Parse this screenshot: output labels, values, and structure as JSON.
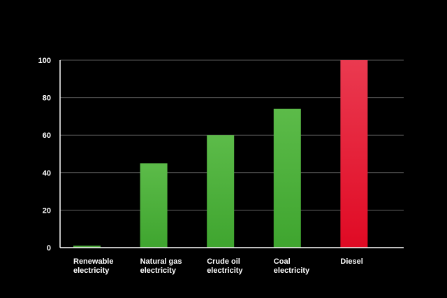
{
  "chart_data": {
    "type": "bar",
    "categories": [
      [
        "Renewable",
        "electricity"
      ],
      [
        "Natural gas",
        "electricity"
      ],
      [
        "Crude oil",
        "electricity"
      ],
      [
        "Coal",
        "electricity"
      ],
      [
        "Diesel"
      ]
    ],
    "values": [
      1,
      45,
      60,
      74,
      100
    ],
    "bar_colors": [
      "#4fb33e",
      "#4fb33e",
      "#4fb33e",
      "#4fb33e",
      "#e4213a"
    ],
    "title": "",
    "xlabel": "",
    "ylabel": "",
    "ylim": [
      0,
      100
    ],
    "yticks": [
      0,
      20,
      40,
      60,
      80,
      100
    ],
    "grid": true,
    "colors": {
      "background": "#000000",
      "axis": "#ffffff",
      "grid": "#5a5a5a",
      "text": "#ffffff"
    }
  }
}
